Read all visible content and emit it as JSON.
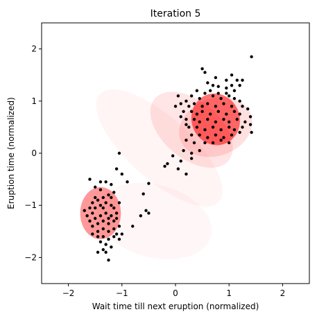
{
  "chart_data": {
    "type": "scatter",
    "title": "Iteration 5",
    "xlabel": "Wait time till next eruption (normalized)",
    "ylabel": "Eruption time (normalized)",
    "xlim": [
      -2.5,
      2.5
    ],
    "ylim": [
      -2.5,
      2.5
    ],
    "xticks": [
      "-2",
      "-1",
      "0",
      "1",
      "2"
    ],
    "yticks": [
      "-2",
      "-1",
      "0",
      "1",
      "2"
    ],
    "grid": false,
    "point_color": "#000000",
    "ellipse_color": "#ff0000",
    "components": [
      {
        "cx": 0.75,
        "cy": 0.65,
        "rx": 0.45,
        "ry": 0.5,
        "angle": -20,
        "alpha": 0.55
      },
      {
        "cx": 0.75,
        "cy": 0.5,
        "rx": 0.7,
        "ry": 0.55,
        "angle": -20,
        "alpha": 0.12
      },
      {
        "cx": 0.3,
        "cy": 0.45,
        "rx": 0.9,
        "ry": 0.55,
        "angle": 40,
        "alpha": 0.1
      },
      {
        "cx": -1.4,
        "cy": -1.15,
        "rx": 0.38,
        "ry": 0.5,
        "angle": 0,
        "alpha": 0.4
      },
      {
        "cx": -0.3,
        "cy": 0.1,
        "rx": 1.5,
        "ry": 0.6,
        "angle": 42,
        "alpha": 0.04
      },
      {
        "cx": -0.4,
        "cy": -1.3,
        "rx": 1.1,
        "ry": 0.7,
        "angle": 15,
        "alpha": 0.03
      }
    ],
    "points": [
      [
        1.42,
        1.85
      ],
      [
        1.05,
        1.5
      ],
      [
        0.95,
        1.4
      ],
      [
        0.5,
        1.62
      ],
      [
        0.55,
        1.55
      ],
      [
        1.15,
        1.4
      ],
      [
        1.2,
        1.3
      ],
      [
        0.8,
        1.28
      ],
      [
        0.6,
        1.35
      ],
      [
        0.7,
        1.3
      ],
      [
        0.95,
        1.25
      ],
      [
        1.05,
        1.3
      ],
      [
        1.25,
        1.4
      ],
      [
        0.4,
        1.2
      ],
      [
        0.3,
        1.1
      ],
      [
        0.45,
        1.05
      ],
      [
        0.55,
        1.15
      ],
      [
        0.7,
        1.1
      ],
      [
        0.85,
        1.05
      ],
      [
        1.0,
        1.1
      ],
      [
        1.1,
        1.05
      ],
      [
        1.2,
        1.0
      ],
      [
        0.2,
        1.0
      ],
      [
        0.25,
        0.9
      ],
      [
        0.35,
        0.95
      ],
      [
        0.5,
        0.9
      ],
      [
        0.6,
        0.95
      ],
      [
        0.75,
        0.9
      ],
      [
        0.9,
        0.95
      ],
      [
        1.05,
        0.9
      ],
      [
        1.25,
        0.9
      ],
      [
        1.35,
        0.85
      ],
      [
        0.15,
        0.8
      ],
      [
        0.3,
        0.8
      ],
      [
        0.4,
        0.75
      ],
      [
        0.5,
        0.8
      ],
      [
        0.65,
        0.75
      ],
      [
        0.8,
        0.8
      ],
      [
        0.95,
        0.75
      ],
      [
        1.1,
        0.8
      ],
      [
        1.2,
        0.75
      ],
      [
        1.4,
        0.7
      ],
      [
        0.2,
        0.65
      ],
      [
        0.35,
        0.65
      ],
      [
        0.45,
        0.6
      ],
      [
        0.6,
        0.65
      ],
      [
        0.75,
        0.6
      ],
      [
        0.9,
        0.65
      ],
      [
        1.0,
        0.6
      ],
      [
        1.15,
        0.65
      ],
      [
        1.3,
        0.6
      ],
      [
        0.25,
        0.5
      ],
      [
        0.4,
        0.5
      ],
      [
        0.55,
        0.45
      ],
      [
        0.7,
        0.5
      ],
      [
        0.85,
        0.45
      ],
      [
        1.0,
        0.5
      ],
      [
        1.1,
        0.45
      ],
      [
        1.25,
        0.5
      ],
      [
        1.4,
        0.55
      ],
      [
        0.3,
        0.35
      ],
      [
        0.45,
        0.35
      ],
      [
        0.6,
        0.3
      ],
      [
        0.75,
        0.35
      ],
      [
        0.9,
        0.3
      ],
      [
        1.05,
        0.35
      ],
      [
        1.2,
        0.4
      ],
      [
        0.35,
        0.2
      ],
      [
        0.55,
        0.2
      ],
      [
        0.7,
        0.2
      ],
      [
        0.85,
        0.25
      ],
      [
        1.0,
        0.2
      ],
      [
        0.2,
        0.55
      ],
      [
        0.1,
        0.7
      ],
      [
        0.05,
        1.1
      ],
      [
        0.1,
        0.95
      ],
      [
        0.0,
        0.9
      ],
      [
        0.45,
        0.05
      ],
      [
        0.3,
        0.0
      ],
      [
        0.2,
        0.25
      ],
      [
        0.15,
        0.05
      ],
      [
        0.1,
        -0.15
      ],
      [
        -0.05,
        -0.05
      ],
      [
        0.05,
        -0.3
      ],
      [
        0.2,
        -0.4
      ],
      [
        -0.15,
        -0.2
      ],
      [
        -0.2,
        -0.25
      ],
      [
        0.3,
        -0.1
      ],
      [
        1.42,
        0.4
      ],
      [
        0.75,
        1.45
      ],
      [
        0.65,
        1.2
      ],
      [
        0.8,
        1.15
      ],
      [
        0.95,
        1.15
      ],
      [
        1.1,
        1.2
      ],
      [
        -1.05,
        0.0
      ],
      [
        -1.1,
        -0.3
      ],
      [
        -1.0,
        -0.4
      ],
      [
        -0.9,
        -0.55
      ],
      [
        -0.5,
        -0.58
      ],
      [
        -0.6,
        -0.78
      ],
      [
        -0.55,
        -1.1
      ],
      [
        -0.5,
        -1.15
      ],
      [
        -0.65,
        -1.2
      ],
      [
        -0.8,
        -1.4
      ],
      [
        -1.0,
        -1.55
      ],
      [
        -1.1,
        -1.55
      ],
      [
        -1.6,
        -0.5
      ],
      [
        -1.5,
        -0.65
      ],
      [
        -1.4,
        -0.7
      ],
      [
        -1.3,
        -0.55
      ],
      [
        -1.2,
        -0.6
      ],
      [
        -1.15,
        -0.75
      ],
      [
        -1.25,
        -0.8
      ],
      [
        -1.35,
        -0.85
      ],
      [
        -1.45,
        -0.9
      ],
      [
        -1.55,
        -0.95
      ],
      [
        -1.5,
        -1.05
      ],
      [
        -1.4,
        -1.0
      ],
      [
        -1.3,
        -0.95
      ],
      [
        -1.2,
        -1.0
      ],
      [
        -1.15,
        -1.05
      ],
      [
        -1.1,
        -1.15
      ],
      [
        -1.2,
        -1.2
      ],
      [
        -1.3,
        -1.15
      ],
      [
        -1.4,
        -1.2
      ],
      [
        -1.5,
        -1.25
      ],
      [
        -1.6,
        -1.3
      ],
      [
        -1.55,
        -1.4
      ],
      [
        -1.45,
        -1.35
      ],
      [
        -1.35,
        -1.3
      ],
      [
        -1.25,
        -1.35
      ],
      [
        -1.15,
        -1.3
      ],
      [
        -1.05,
        -1.4
      ],
      [
        -1.15,
        -1.45
      ],
      [
        -1.25,
        -1.5
      ],
      [
        -1.35,
        -1.45
      ],
      [
        -1.45,
        -1.5
      ],
      [
        -1.35,
        -1.6
      ],
      [
        -1.25,
        -1.65
      ],
      [
        -1.15,
        -1.6
      ],
      [
        -1.3,
        -1.75
      ],
      [
        -1.4,
        -1.7
      ],
      [
        -1.35,
        -1.85
      ],
      [
        -1.3,
        -1.9
      ],
      [
        -1.25,
        -2.05
      ],
      [
        -1.45,
        -1.9
      ],
      [
        -1.2,
        -1.8
      ],
      [
        -1.05,
        -1.65
      ],
      [
        -1.55,
        -1.15
      ],
      [
        -1.65,
        -1.2
      ],
      [
        -1.6,
        -1.05
      ],
      [
        -1.7,
        -1.1
      ],
      [
        -1.4,
        -0.55
      ],
      [
        -1.2,
        -0.85
      ],
      [
        -1.05,
        -0.95
      ],
      [
        -1.45,
        -1.6
      ],
      [
        -1.55,
        -1.55
      ],
      [
        -1.25,
        -1.25
      ],
      [
        -1.35,
        -1.05
      ],
      [
        -1.5,
        -0.85
      ],
      [
        -1.1,
        -1.25
      ]
    ]
  }
}
